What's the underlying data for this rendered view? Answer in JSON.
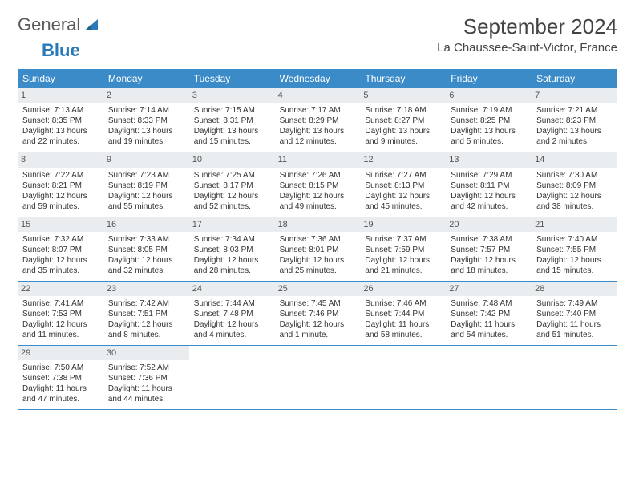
{
  "logo": {
    "word1": "General",
    "word2": "Blue"
  },
  "title": "September 2024",
  "location": "La Chaussee-Saint-Victor, France",
  "colors": {
    "header_bg": "#3b8bc9",
    "header_text": "#ffffff",
    "daynum_bg": "#e9edf0",
    "text": "#333333",
    "rule": "#3b8bc9"
  },
  "day_names": [
    "Sunday",
    "Monday",
    "Tuesday",
    "Wednesday",
    "Thursday",
    "Friday",
    "Saturday"
  ],
  "days": [
    {
      "n": 1,
      "sr": "7:13 AM",
      "ss": "8:35 PM",
      "dl": "13 hours and 22 minutes."
    },
    {
      "n": 2,
      "sr": "7:14 AM",
      "ss": "8:33 PM",
      "dl": "13 hours and 19 minutes."
    },
    {
      "n": 3,
      "sr": "7:15 AM",
      "ss": "8:31 PM",
      "dl": "13 hours and 15 minutes."
    },
    {
      "n": 4,
      "sr": "7:17 AM",
      "ss": "8:29 PM",
      "dl": "13 hours and 12 minutes."
    },
    {
      "n": 5,
      "sr": "7:18 AM",
      "ss": "8:27 PM",
      "dl": "13 hours and 9 minutes."
    },
    {
      "n": 6,
      "sr": "7:19 AM",
      "ss": "8:25 PM",
      "dl": "13 hours and 5 minutes."
    },
    {
      "n": 7,
      "sr": "7:21 AM",
      "ss": "8:23 PM",
      "dl": "13 hours and 2 minutes."
    },
    {
      "n": 8,
      "sr": "7:22 AM",
      "ss": "8:21 PM",
      "dl": "12 hours and 59 minutes."
    },
    {
      "n": 9,
      "sr": "7:23 AM",
      "ss": "8:19 PM",
      "dl": "12 hours and 55 minutes."
    },
    {
      "n": 10,
      "sr": "7:25 AM",
      "ss": "8:17 PM",
      "dl": "12 hours and 52 minutes."
    },
    {
      "n": 11,
      "sr": "7:26 AM",
      "ss": "8:15 PM",
      "dl": "12 hours and 49 minutes."
    },
    {
      "n": 12,
      "sr": "7:27 AM",
      "ss": "8:13 PM",
      "dl": "12 hours and 45 minutes."
    },
    {
      "n": 13,
      "sr": "7:29 AM",
      "ss": "8:11 PM",
      "dl": "12 hours and 42 minutes."
    },
    {
      "n": 14,
      "sr": "7:30 AM",
      "ss": "8:09 PM",
      "dl": "12 hours and 38 minutes."
    },
    {
      "n": 15,
      "sr": "7:32 AM",
      "ss": "8:07 PM",
      "dl": "12 hours and 35 minutes."
    },
    {
      "n": 16,
      "sr": "7:33 AM",
      "ss": "8:05 PM",
      "dl": "12 hours and 32 minutes."
    },
    {
      "n": 17,
      "sr": "7:34 AM",
      "ss": "8:03 PM",
      "dl": "12 hours and 28 minutes."
    },
    {
      "n": 18,
      "sr": "7:36 AM",
      "ss": "8:01 PM",
      "dl": "12 hours and 25 minutes."
    },
    {
      "n": 19,
      "sr": "7:37 AM",
      "ss": "7:59 PM",
      "dl": "12 hours and 21 minutes."
    },
    {
      "n": 20,
      "sr": "7:38 AM",
      "ss": "7:57 PM",
      "dl": "12 hours and 18 minutes."
    },
    {
      "n": 21,
      "sr": "7:40 AM",
      "ss": "7:55 PM",
      "dl": "12 hours and 15 minutes."
    },
    {
      "n": 22,
      "sr": "7:41 AM",
      "ss": "7:53 PM",
      "dl": "12 hours and 11 minutes."
    },
    {
      "n": 23,
      "sr": "7:42 AM",
      "ss": "7:51 PM",
      "dl": "12 hours and 8 minutes."
    },
    {
      "n": 24,
      "sr": "7:44 AM",
      "ss": "7:48 PM",
      "dl": "12 hours and 4 minutes."
    },
    {
      "n": 25,
      "sr": "7:45 AM",
      "ss": "7:46 PM",
      "dl": "12 hours and 1 minute."
    },
    {
      "n": 26,
      "sr": "7:46 AM",
      "ss": "7:44 PM",
      "dl": "11 hours and 58 minutes."
    },
    {
      "n": 27,
      "sr": "7:48 AM",
      "ss": "7:42 PM",
      "dl": "11 hours and 54 minutes."
    },
    {
      "n": 28,
      "sr": "7:49 AM",
      "ss": "7:40 PM",
      "dl": "11 hours and 51 minutes."
    },
    {
      "n": 29,
      "sr": "7:50 AM",
      "ss": "7:38 PM",
      "dl": "11 hours and 47 minutes."
    },
    {
      "n": 30,
      "sr": "7:52 AM",
      "ss": "7:36 PM",
      "dl": "11 hours and 44 minutes."
    }
  ],
  "labels": {
    "sunrise": "Sunrise:",
    "sunset": "Sunset:",
    "daylight": "Daylight:"
  }
}
